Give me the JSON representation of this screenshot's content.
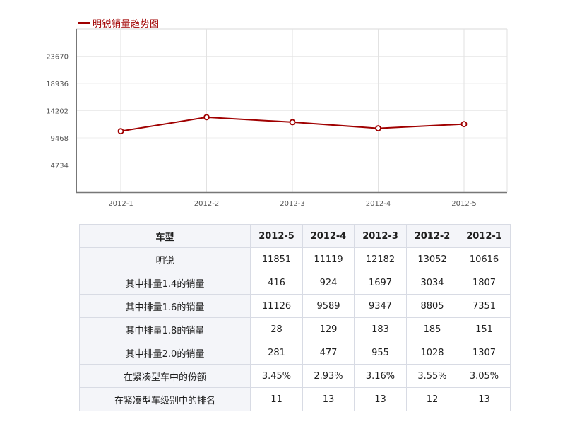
{
  "chart_data": {
    "type": "line",
    "title": "",
    "xlabel": "",
    "ylabel": "",
    "categories": [
      "2012-1",
      "2012-2",
      "2012-3",
      "2012-4",
      "2012-5"
    ],
    "series": [
      {
        "name": "明锐销量趋势图",
        "values": [
          10616,
          13052,
          12182,
          11119,
          11851
        ],
        "color": "#a00000"
      }
    ],
    "yticks": [
      4734,
      9468,
      14202,
      18936,
      23670
    ],
    "ylim": [
      0,
      28404
    ],
    "grid": true,
    "legend_placement": "top-left"
  },
  "table": {
    "header": [
      "车型",
      "2012-5",
      "2012-4",
      "2012-3",
      "2012-2",
      "2012-1"
    ],
    "rows": [
      [
        "明锐",
        "11851",
        "11119",
        "12182",
        "13052",
        "10616"
      ],
      [
        "其中排量1.4的销量",
        "416",
        "924",
        "1697",
        "3034",
        "1807"
      ],
      [
        "其中排量1.6的销量",
        "11126",
        "9589",
        "9347",
        "8805",
        "7351"
      ],
      [
        "其中排量1.8的销量",
        "28",
        "129",
        "183",
        "185",
        "151"
      ],
      [
        "其中排量2.0的销量",
        "281",
        "477",
        "955",
        "1028",
        "1307"
      ],
      [
        "在紧凑型车中的份额",
        "3.45%",
        "2.93%",
        "3.16%",
        "3.55%",
        "3.05%"
      ],
      [
        "在紧凑型车级别中的排名",
        "11",
        "13",
        "13",
        "12",
        "13"
      ]
    ]
  }
}
